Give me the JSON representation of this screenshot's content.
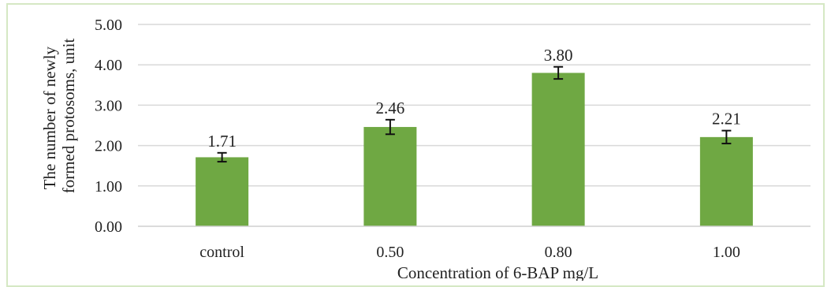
{
  "chart_data": {
    "type": "bar",
    "categories": [
      "control",
      "0.50",
      "0.80",
      "1.00"
    ],
    "values": [
      1.71,
      2.46,
      3.8,
      2.21
    ],
    "value_labels": [
      "1.71",
      "2.46",
      "3.80",
      "2.21"
    ],
    "errors": [
      0.11,
      0.18,
      0.15,
      0.16
    ],
    "xlabel": "Concentration of 6-BAP mg/L",
    "ylabel_lines": [
      "The number of newly",
      "formed protosoms, unit"
    ],
    "ylim": [
      0,
      5
    ],
    "yticks": [
      "0.00",
      "1.00",
      "2.00",
      "3.00",
      "4.00",
      "5.00"
    ],
    "grid": true,
    "bar_color": "#6fa843",
    "grid_color": "#d9d9d9",
    "frame_color": "#d5e8c4"
  }
}
